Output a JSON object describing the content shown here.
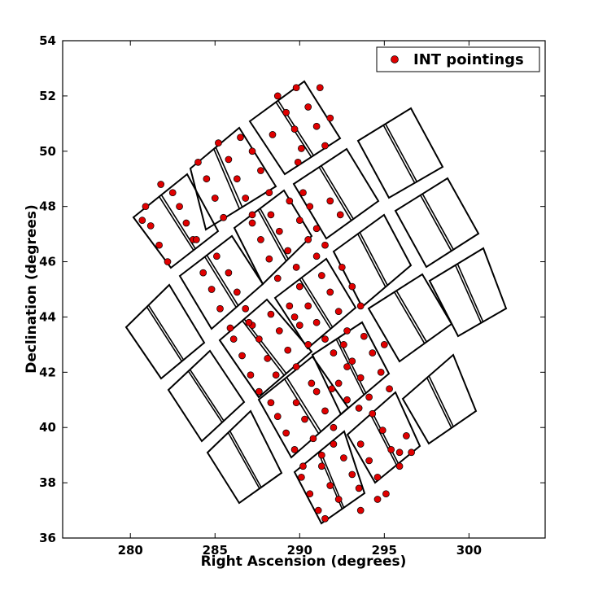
{
  "chart_data": {
    "type": "scatter",
    "xlabel": "Right Ascension (degrees)",
    "ylabel": "Declination (degrees)",
    "xlim": [
      276,
      304.5
    ],
    "ylim": [
      36,
      54
    ],
    "xticks": [
      280,
      285,
      290,
      295,
      300
    ],
    "yticks": [
      36,
      38,
      40,
      42,
      44,
      46,
      48,
      50,
      52,
      54
    ],
    "grid": false,
    "legend_position": "top-right",
    "series": [
      {
        "name": "INT pointings",
        "color": "#e00000",
        "edge_color": "#000000",
        "points": [
          [
            280.9,
            48.0
          ],
          [
            281.2,
            47.3
          ],
          [
            281.7,
            46.6
          ],
          [
            282.2,
            46.0
          ],
          [
            282.5,
            48.5
          ],
          [
            282.9,
            48.0
          ],
          [
            283.3,
            47.4
          ],
          [
            283.7,
            46.8
          ],
          [
            281.8,
            48.8
          ],
          [
            280.7,
            47.5
          ],
          [
            284.0,
            49.6
          ],
          [
            284.5,
            49.0
          ],
          [
            285.0,
            48.3
          ],
          [
            285.5,
            47.6
          ],
          [
            285.2,
            50.3
          ],
          [
            285.8,
            49.7
          ],
          [
            286.3,
            49.0
          ],
          [
            286.8,
            48.3
          ],
          [
            287.2,
            47.7
          ],
          [
            286.5,
            50.5
          ],
          [
            287.2,
            50.0
          ],
          [
            287.7,
            49.3
          ],
          [
            288.2,
            48.5
          ],
          [
            288.7,
            52.0
          ],
          [
            289.2,
            51.4
          ],
          [
            289.7,
            50.8
          ],
          [
            290.1,
            50.1
          ],
          [
            289.8,
            52.3
          ],
          [
            290.5,
            51.6
          ],
          [
            291.0,
            50.9
          ],
          [
            291.5,
            50.2
          ],
          [
            288.4,
            50.6
          ],
          [
            289.9,
            49.6
          ],
          [
            291.2,
            52.3
          ],
          [
            291.8,
            51.2
          ],
          [
            284.3,
            45.6
          ],
          [
            284.8,
            45.0
          ],
          [
            285.3,
            44.3
          ],
          [
            285.9,
            43.6
          ],
          [
            285.1,
            46.2
          ],
          [
            285.8,
            45.6
          ],
          [
            286.3,
            44.9
          ],
          [
            286.8,
            44.3
          ],
          [
            287.2,
            43.7
          ],
          [
            283.9,
            46.8
          ],
          [
            287.2,
            47.4
          ],
          [
            287.7,
            46.8
          ],
          [
            288.2,
            46.1
          ],
          [
            288.7,
            45.4
          ],
          [
            288.3,
            47.7
          ],
          [
            288.8,
            47.1
          ],
          [
            289.3,
            46.4
          ],
          [
            289.8,
            45.8
          ],
          [
            289.4,
            48.2
          ],
          [
            290.0,
            47.5
          ],
          [
            290.5,
            46.8
          ],
          [
            291.0,
            46.2
          ],
          [
            290.2,
            48.5
          ],
          [
            290.6,
            48.0
          ],
          [
            291.0,
            47.2
          ],
          [
            291.5,
            46.6
          ],
          [
            292.4,
            47.7
          ],
          [
            291.8,
            48.2
          ],
          [
            286.1,
            43.2
          ],
          [
            286.6,
            42.6
          ],
          [
            287.1,
            41.9
          ],
          [
            287.6,
            41.3
          ],
          [
            287.0,
            43.8
          ],
          [
            287.6,
            43.2
          ],
          [
            288.1,
            42.5
          ],
          [
            288.6,
            41.9
          ],
          [
            288.3,
            44.1
          ],
          [
            288.8,
            43.5
          ],
          [
            289.3,
            42.8
          ],
          [
            289.8,
            42.2
          ],
          [
            289.4,
            44.4
          ],
          [
            290.0,
            43.7
          ],
          [
            290.5,
            43.0
          ],
          [
            290.0,
            45.1
          ],
          [
            290.5,
            44.4
          ],
          [
            291.0,
            43.8
          ],
          [
            291.5,
            43.2
          ],
          [
            291.3,
            45.5
          ],
          [
            291.8,
            44.9
          ],
          [
            292.3,
            44.2
          ],
          [
            292.8,
            43.5
          ],
          [
            292.5,
            45.8
          ],
          [
            293.1,
            45.1
          ],
          [
            293.6,
            44.4
          ],
          [
            289.7,
            44.0
          ],
          [
            292.0,
            42.7
          ],
          [
            292.6,
            43.0
          ],
          [
            293.1,
            42.4
          ],
          [
            293.6,
            41.8
          ],
          [
            294.1,
            41.1
          ],
          [
            293.8,
            43.3
          ],
          [
            294.3,
            42.7
          ],
          [
            294.8,
            42.0
          ],
          [
            295.3,
            41.4
          ],
          [
            292.3,
            41.6
          ],
          [
            292.8,
            41.0
          ],
          [
            293.5,
            40.7
          ],
          [
            292.8,
            42.2
          ],
          [
            295.0,
            43.0
          ],
          [
            288.7,
            40.4
          ],
          [
            289.2,
            39.8
          ],
          [
            289.7,
            39.2
          ],
          [
            290.2,
            38.6
          ],
          [
            289.8,
            40.9
          ],
          [
            290.3,
            40.3
          ],
          [
            290.8,
            39.6
          ],
          [
            291.3,
            39.0
          ],
          [
            291.0,
            41.3
          ],
          [
            291.5,
            40.6
          ],
          [
            292.0,
            40.0
          ],
          [
            288.3,
            40.9
          ],
          [
            290.7,
            41.6
          ],
          [
            291.9,
            41.4
          ],
          [
            290.1,
            38.2
          ],
          [
            290.6,
            37.6
          ],
          [
            291.1,
            37.0
          ],
          [
            291.5,
            36.7
          ],
          [
            291.3,
            38.6
          ],
          [
            291.8,
            37.9
          ],
          [
            292.3,
            37.4
          ],
          [
            292.6,
            38.9
          ],
          [
            293.1,
            38.3
          ],
          [
            293.5,
            37.8
          ],
          [
            292.0,
            39.4
          ],
          [
            293.6,
            37.0
          ],
          [
            293.6,
            39.4
          ],
          [
            294.1,
            38.8
          ],
          [
            294.6,
            38.2
          ],
          [
            295.1,
            37.6
          ],
          [
            294.3,
            40.5
          ],
          [
            294.9,
            39.9
          ],
          [
            295.4,
            39.2
          ],
          [
            295.9,
            38.6
          ],
          [
            296.3,
            39.7
          ],
          [
            294.6,
            37.4
          ],
          [
            295.9,
            39.1
          ],
          [
            296.6,
            39.1
          ]
        ]
      }
    ]
  },
  "legend": {
    "label": "INT pointings"
  }
}
